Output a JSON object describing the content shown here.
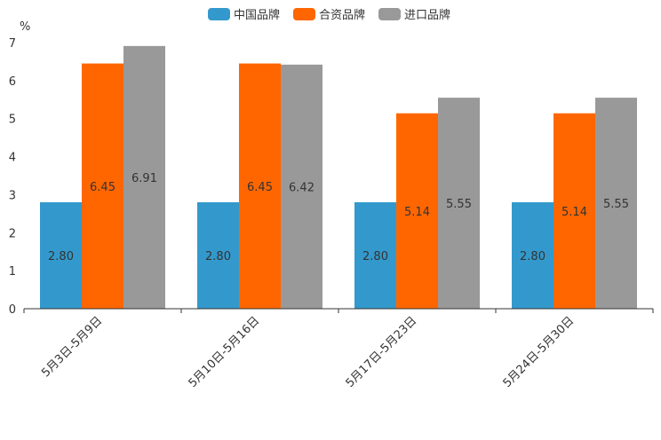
{
  "chart_data": {
    "type": "bar",
    "title": "",
    "xlabel": "",
    "ylabel": "%",
    "ylim": [
      0,
      7
    ],
    "yticks": [
      0,
      1,
      2,
      3,
      4,
      5,
      6,
      7
    ],
    "grid": false,
    "legend_position": "top-center",
    "categories": [
      "5月3日-5月9日",
      "5月10日-5月16日",
      "5月17日-5月23日",
      "5月24日-5月30日"
    ],
    "series": [
      {
        "name": "中国品牌",
        "color": "#3399CC",
        "values": [
          2.8,
          2.8,
          2.8,
          2.8
        ],
        "labels": [
          "2.80",
          "2.80",
          "2.80",
          "2.80"
        ]
      },
      {
        "name": "合资品牌",
        "color": "#FF6600",
        "values": [
          6.45,
          6.45,
          5.14,
          5.14
        ],
        "labels": [
          "6.45",
          "6.45",
          "5.14",
          "5.14"
        ]
      },
      {
        "name": "进口品牌",
        "color": "#999999",
        "values": [
          6.91,
          6.42,
          5.55,
          5.55
        ],
        "labels": [
          "6.91",
          "6.42",
          "5.55",
          "5.55"
        ]
      }
    ]
  }
}
